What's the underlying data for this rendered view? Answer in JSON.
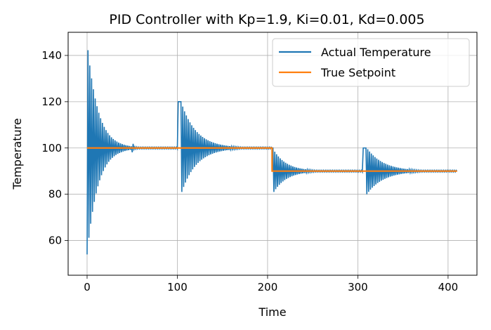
{
  "chart_data": {
    "type": "line",
    "title": "PID Controller with Kp=1.9, Ki=0.01, Kd=0.005",
    "xlabel": "Time",
    "ylabel": "Temperature",
    "xlim": [
      -21,
      432
    ],
    "ylim": [
      45,
      150
    ],
    "xticks": [
      0,
      100,
      200,
      300,
      400
    ],
    "yticks": [
      60,
      80,
      100,
      120,
      140
    ],
    "grid": true,
    "legend_position": "top-right",
    "colors": {
      "actual": "#1f77b4",
      "setpoint": "#ff7f0e"
    },
    "series": [
      {
        "name": "Actual Temperature",
        "color": "#1f77b4",
        "segments": [
          {
            "start": 0,
            "end": 101,
            "base": 100,
            "amplitude": 46,
            "decay": 0.085,
            "kick_from": 50
          },
          {
            "start": 101,
            "end": 105,
            "plateau": 120
          },
          {
            "start": 105,
            "end": 205,
            "base": 100,
            "amplitude": 19,
            "decay": 0.06
          },
          {
            "start": 205,
            "end": 207,
            "plateau": 100
          },
          {
            "start": 207,
            "end": 306,
            "base": 90,
            "amplitude": 9,
            "decay": 0.07
          },
          {
            "start": 306,
            "end": 310,
            "plateau": 100
          },
          {
            "start": 310,
            "end": 410,
            "base": 90,
            "amplitude": 10,
            "decay": 0.055
          }
        ]
      },
      {
        "name": "True Setpoint",
        "color": "#ff7f0e",
        "x": [
          0,
          205,
          205,
          410
        ],
        "y": [
          100,
          100,
          90,
          90
        ]
      }
    ]
  }
}
